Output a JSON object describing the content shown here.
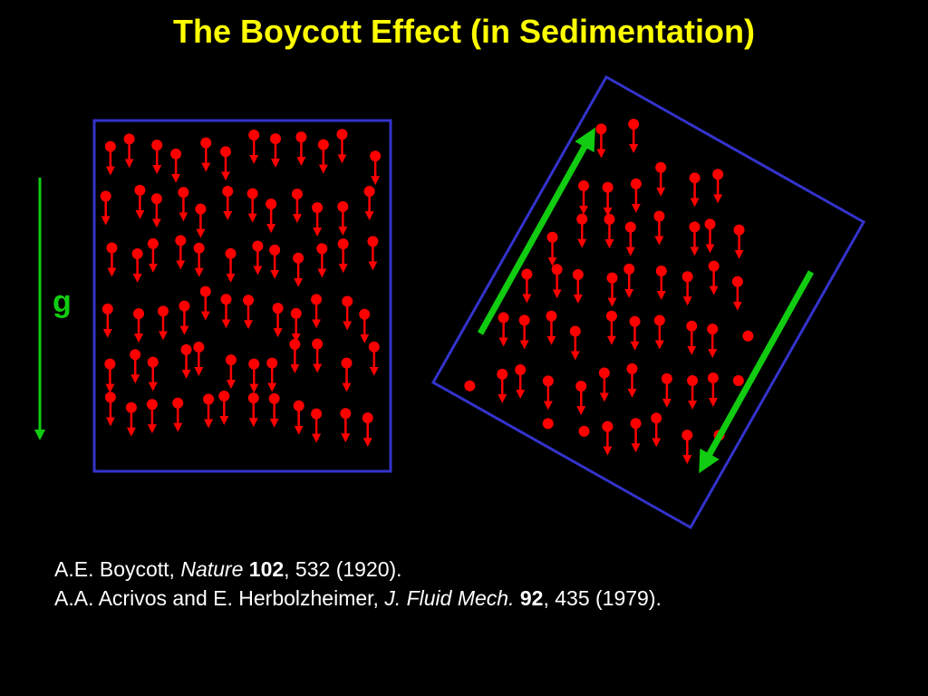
{
  "title": "The Boycott Effect (in Sedimentation)",
  "gravity_label": "g",
  "colors": {
    "background": "#000000",
    "title": "#ffff00",
    "container_border": "#3333cc",
    "particle": "#ff0000",
    "flow_arrow": "#11cc11",
    "text": "#ffffff"
  },
  "references": [
    {
      "authors": "A.E. Boycott, ",
      "journal": "Nature",
      "volume": "102",
      "rest": ", 532 (1920)."
    },
    {
      "authors": "A.A. Acrivos and E. Herbolzheimer, ",
      "journal": "J. Fluid Mech.",
      "volume": "92",
      "rest": ", 435 (1979)."
    }
  ]
}
